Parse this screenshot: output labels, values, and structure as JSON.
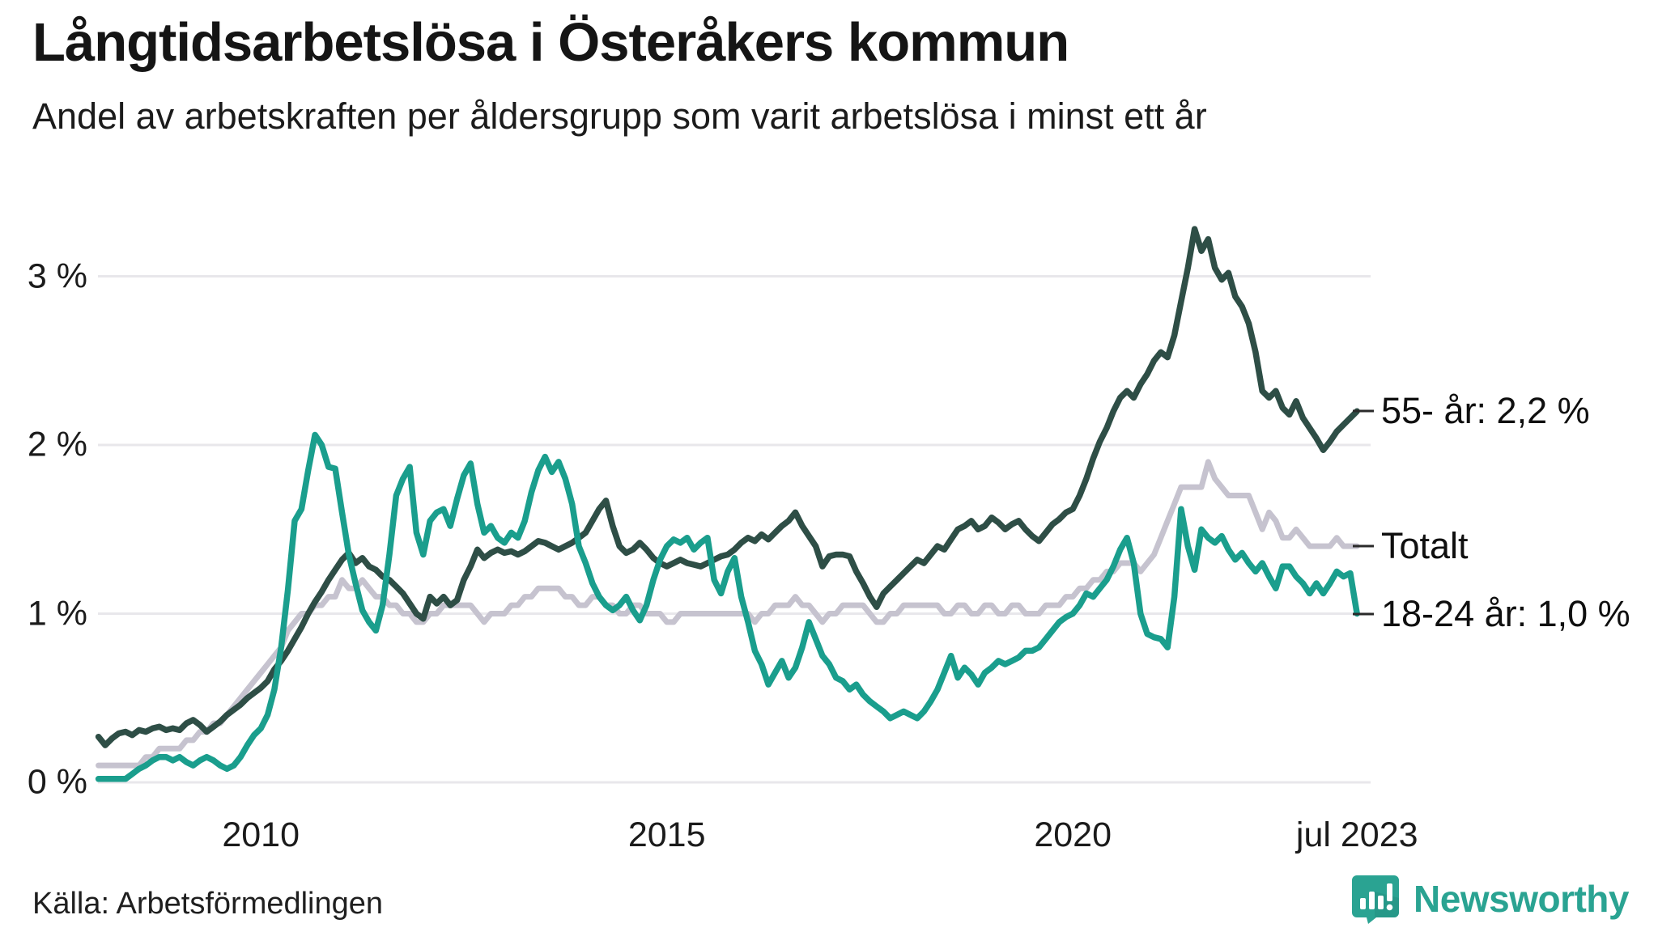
{
  "title": "Långtidsarbetslösa i Österåkers kommun",
  "subtitle": "Andel av arbetskraften per åldersgrupp som varit arbetslösa i minst ett år",
  "source": "Källa: Arbetsförmedlingen",
  "branding": {
    "name": "Newsworthy",
    "color": "#2aa392",
    "icon": "newsworthy-speech-bubble-bars-logo"
  },
  "chart_data": {
    "type": "line",
    "title": "Långtidsarbetslösa i Österåkers kommun",
    "xlabel": "",
    "ylabel": "",
    "grid": true,
    "x_start": 2008.0,
    "x_end": 2023.5,
    "x_step_months": 1,
    "ylim": [
      0,
      3.4
    ],
    "gridline_color": "#e8e7eb",
    "y_ticks": [
      {
        "label": "3 %",
        "value": 3
      },
      {
        "label": "2 %",
        "value": 2
      },
      {
        "label": "1 %",
        "value": 1
      },
      {
        "label": "0 %",
        "value": 0
      }
    ],
    "x_ticks": [
      {
        "label": "2010",
        "year": 2010
      },
      {
        "label": "2015",
        "year": 2015
      },
      {
        "label": "2020",
        "year": 2020
      },
      {
        "label": "jul 2023",
        "year": 2023.5
      }
    ],
    "series": [
      {
        "name": "Totalt",
        "color": "#c6c3cf",
        "end_label": "Totalt",
        "end_value": 1.4,
        "values": [
          0.1,
          0.1,
          0.1,
          0.1,
          0.1,
          0.1,
          0.1,
          0.15,
          0.15,
          0.2,
          0.2,
          0.2,
          0.2,
          0.25,
          0.25,
          0.3,
          0.3,
          0.35,
          0.35,
          0.4,
          0.45,
          0.5,
          0.55,
          0.6,
          0.65,
          0.7,
          0.75,
          0.8,
          0.9,
          0.95,
          1.0,
          1.0,
          1.05,
          1.05,
          1.1,
          1.1,
          1.2,
          1.15,
          1.15,
          1.2,
          1.15,
          1.1,
          1.1,
          1.05,
          1.05,
          1.0,
          1.0,
          0.95,
          0.95,
          1.0,
          1.0,
          1.05,
          1.05,
          1.05,
          1.05,
          1.05,
          1.0,
          0.95,
          1.0,
          1.0,
          1.0,
          1.05,
          1.05,
          1.1,
          1.1,
          1.15,
          1.15,
          1.15,
          1.15,
          1.1,
          1.1,
          1.05,
          1.05,
          1.1,
          1.1,
          1.05,
          1.05,
          1.0,
          1.0,
          1.05,
          1.05,
          1.0,
          1.0,
          1.0,
          0.95,
          0.95,
          1.0,
          1.0,
          1.0,
          1.0,
          1.0,
          1.0,
          1.0,
          1.0,
          1.0,
          1.0,
          1.0,
          0.95,
          1.0,
          1.0,
          1.05,
          1.05,
          1.05,
          1.1,
          1.05,
          1.05,
          1.0,
          0.95,
          1.0,
          1.0,
          1.05,
          1.05,
          1.05,
          1.05,
          1.0,
          0.95,
          0.95,
          1.0,
          1.0,
          1.05,
          1.05,
          1.05,
          1.05,
          1.05,
          1.05,
          1.0,
          1.0,
          1.05,
          1.05,
          1.0,
          1.0,
          1.05,
          1.05,
          1.0,
          1.0,
          1.05,
          1.05,
          1.0,
          1.0,
          1.0,
          1.05,
          1.05,
          1.05,
          1.1,
          1.1,
          1.15,
          1.15,
          1.2,
          1.2,
          1.25,
          1.25,
          1.3,
          1.3,
          1.3,
          1.25,
          1.3,
          1.35,
          1.45,
          1.55,
          1.65,
          1.75,
          1.75,
          1.75,
          1.75,
          1.9,
          1.8,
          1.75,
          1.7,
          1.7,
          1.7,
          1.7,
          1.6,
          1.5,
          1.6,
          1.55,
          1.45,
          1.45,
          1.5,
          1.45,
          1.4,
          1.4,
          1.4,
          1.4,
          1.45,
          1.4,
          1.4,
          1.4
        ]
      },
      {
        "name": "55- år",
        "color": "#2e4e46",
        "end_label": "55- år: 2,2 %",
        "end_value": 2.2,
        "values": [
          0.27,
          0.22,
          0.26,
          0.29,
          0.3,
          0.28,
          0.31,
          0.3,
          0.32,
          0.33,
          0.31,
          0.32,
          0.31,
          0.35,
          0.37,
          0.34,
          0.3,
          0.33,
          0.36,
          0.4,
          0.43,
          0.46,
          0.5,
          0.53,
          0.56,
          0.6,
          0.67,
          0.72,
          0.78,
          0.85,
          0.92,
          1.0,
          1.07,
          1.13,
          1.2,
          1.26,
          1.32,
          1.36,
          1.3,
          1.33,
          1.28,
          1.26,
          1.22,
          1.2,
          1.16,
          1.12,
          1.06,
          1.0,
          0.97,
          1.1,
          1.06,
          1.1,
          1.05,
          1.08,
          1.2,
          1.28,
          1.38,
          1.33,
          1.36,
          1.38,
          1.36,
          1.37,
          1.35,
          1.37,
          1.4,
          1.43,
          1.42,
          1.4,
          1.38,
          1.4,
          1.42,
          1.45,
          1.48,
          1.55,
          1.62,
          1.67,
          1.52,
          1.4,
          1.36,
          1.38,
          1.42,
          1.38,
          1.33,
          1.3,
          1.28,
          1.3,
          1.32,
          1.3,
          1.29,
          1.28,
          1.3,
          1.32,
          1.34,
          1.35,
          1.38,
          1.42,
          1.45,
          1.43,
          1.47,
          1.44,
          1.48,
          1.52,
          1.55,
          1.6,
          1.52,
          1.46,
          1.4,
          1.28,
          1.34,
          1.35,
          1.35,
          1.34,
          1.25,
          1.18,
          1.1,
          1.04,
          1.12,
          1.16,
          1.2,
          1.24,
          1.28,
          1.32,
          1.3,
          1.35,
          1.4,
          1.38,
          1.44,
          1.5,
          1.52,
          1.55,
          1.5,
          1.52,
          1.57,
          1.54,
          1.5,
          1.53,
          1.55,
          1.5,
          1.46,
          1.43,
          1.48,
          1.53,
          1.56,
          1.6,
          1.62,
          1.7,
          1.8,
          1.92,
          2.02,
          2.1,
          2.2,
          2.28,
          2.32,
          2.28,
          2.36,
          2.42,
          2.5,
          2.55,
          2.52,
          2.65,
          2.85,
          3.05,
          3.28,
          3.15,
          3.22,
          3.05,
          2.98,
          3.02,
          2.88,
          2.82,
          2.72,
          2.55,
          2.32,
          2.28,
          2.32,
          2.22,
          2.18,
          2.26,
          2.16,
          2.1,
          2.04,
          1.97,
          2.02,
          2.08,
          2.12,
          2.16,
          2.2
        ]
      },
      {
        "name": "18-24 år",
        "color": "#1a9e8d",
        "end_label": "18-24 år: 1,0 %",
        "end_value": 1.0,
        "values": [
          0.02,
          0.02,
          0.02,
          0.02,
          0.02,
          0.05,
          0.08,
          0.1,
          0.13,
          0.15,
          0.15,
          0.13,
          0.15,
          0.12,
          0.1,
          0.13,
          0.15,
          0.13,
          0.1,
          0.08,
          0.1,
          0.15,
          0.22,
          0.28,
          0.32,
          0.4,
          0.55,
          0.8,
          1.14,
          1.55,
          1.62,
          1.85,
          2.06,
          2.0,
          1.87,
          1.86,
          1.6,
          1.35,
          1.18,
          1.02,
          0.95,
          0.9,
          1.05,
          1.35,
          1.7,
          1.8,
          1.87,
          1.48,
          1.35,
          1.55,
          1.6,
          1.62,
          1.52,
          1.68,
          1.82,
          1.89,
          1.65,
          1.48,
          1.52,
          1.45,
          1.42,
          1.48,
          1.45,
          1.55,
          1.72,
          1.85,
          1.93,
          1.84,
          1.9,
          1.8,
          1.65,
          1.4,
          1.3,
          1.18,
          1.1,
          1.05,
          1.02,
          1.05,
          1.1,
          1.02,
          0.96,
          1.05,
          1.2,
          1.32,
          1.4,
          1.44,
          1.42,
          1.45,
          1.38,
          1.42,
          1.45,
          1.2,
          1.12,
          1.25,
          1.33,
          1.1,
          0.95,
          0.78,
          0.7,
          0.58,
          0.65,
          0.72,
          0.62,
          0.68,
          0.8,
          0.95,
          0.85,
          0.75,
          0.7,
          0.62,
          0.6,
          0.55,
          0.58,
          0.52,
          0.48,
          0.45,
          0.42,
          0.38,
          0.4,
          0.42,
          0.4,
          0.38,
          0.42,
          0.48,
          0.55,
          0.65,
          0.75,
          0.62,
          0.68,
          0.64,
          0.58,
          0.65,
          0.68,
          0.72,
          0.7,
          0.72,
          0.74,
          0.78,
          0.78,
          0.8,
          0.85,
          0.9,
          0.95,
          0.98,
          1.0,
          1.05,
          1.12,
          1.1,
          1.15,
          1.2,
          1.28,
          1.38,
          1.45,
          1.3,
          1.0,
          0.88,
          0.86,
          0.85,
          0.8,
          1.1,
          1.62,
          1.4,
          1.26,
          1.5,
          1.45,
          1.42,
          1.46,
          1.38,
          1.32,
          1.36,
          1.3,
          1.25,
          1.3,
          1.22,
          1.15,
          1.28,
          1.28,
          1.22,
          1.18,
          1.12,
          1.18,
          1.12,
          1.18,
          1.25,
          1.22,
          1.24,
          1.0
        ]
      }
    ]
  }
}
